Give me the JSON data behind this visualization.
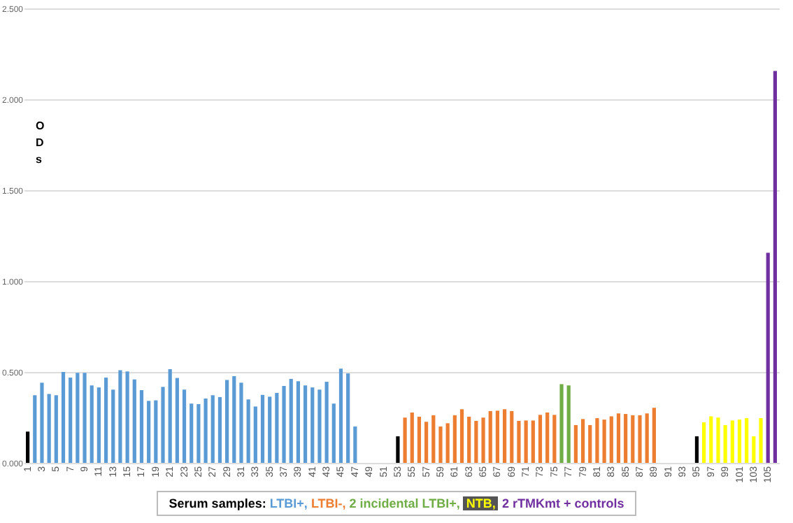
{
  "chart_data": {
    "type": "bar",
    "ylabel": "ODs",
    "legend_title": "Serum samples:",
    "categories": [
      "1",
      null,
      "3",
      null,
      "5",
      null,
      "7",
      null,
      "9",
      null,
      "11",
      null,
      "13",
      null,
      "15",
      null,
      "17",
      null,
      "19",
      null,
      "21",
      null,
      "23",
      null,
      "25",
      null,
      "27",
      null,
      "29",
      null,
      "31",
      null,
      "33",
      null,
      "35",
      null,
      "37",
      null,
      "39",
      null,
      "41",
      null,
      "43",
      null,
      "45",
      null,
      "47",
      null,
      "49",
      null,
      "51",
      null,
      "53",
      null,
      "55",
      null,
      "57",
      null,
      "59",
      null,
      "61",
      null,
      "63",
      null,
      "65",
      null,
      "67",
      null,
      "69",
      null,
      "71",
      null,
      "73",
      null,
      "75",
      null,
      "77",
      null,
      "79",
      null,
      "81",
      null,
      "83",
      null,
      "85",
      null,
      "87",
      null,
      "89",
      null,
      "91",
      null,
      "93",
      null,
      "95",
      null,
      "97",
      null,
      "99",
      null,
      "101",
      null,
      "103",
      null,
      "105",
      null
    ],
    "series": [
      {
        "color": "#000000",
        "values": [
          0.172,
          null,
          null,
          null,
          null,
          null,
          null,
          null,
          null,
          null,
          null,
          null,
          null,
          null,
          null,
          null,
          null,
          null,
          null,
          null,
          null,
          null,
          null,
          null,
          null,
          null,
          null,
          null,
          null,
          null,
          null,
          null,
          null,
          null,
          null,
          null,
          null,
          null,
          null,
          null,
          null,
          null,
          null,
          null,
          null,
          null,
          null,
          null,
          null,
          null,
          null,
          null,
          0.146,
          null,
          null,
          null,
          null,
          null,
          null,
          null,
          null,
          null,
          null,
          null,
          null,
          null,
          null,
          null,
          null,
          null,
          null,
          null,
          null,
          null,
          null,
          null,
          null,
          null,
          null,
          null,
          null,
          null,
          null,
          null,
          null,
          null,
          null,
          null,
          null,
          null,
          null,
          null,
          null,
          null,
          0.146,
          null,
          null,
          null,
          null,
          null,
          null,
          null,
          null,
          null,
          null,
          null
        ]
      },
      {
        "name": "LTBI+,",
        "color": "#5b9bd5",
        "values": [
          null,
          0.372,
          0.441,
          0.379,
          0.372,
          0.5,
          0.469,
          0.495,
          0.495,
          0.426,
          0.415,
          0.469,
          0.403,
          0.51,
          0.503,
          0.459,
          0.4,
          0.341,
          0.344,
          0.418,
          0.515,
          0.467,
          0.403,
          0.326,
          0.323,
          0.354,
          0.372,
          0.362,
          0.456,
          0.477,
          0.441,
          0.349,
          0.31,
          0.374,
          0.364,
          0.385,
          0.423,
          0.462,
          0.449,
          0.426,
          0.415,
          0.403,
          0.446,
          0.326,
          0.518,
          0.492,
          0.2,
          null,
          null,
          null,
          null,
          null,
          null,
          null,
          null,
          null,
          null,
          null,
          null,
          null,
          null,
          null,
          null,
          null,
          null,
          null,
          null,
          null,
          null,
          null,
          null,
          null,
          null,
          null,
          null,
          null,
          null,
          null,
          null,
          null,
          null,
          null,
          null,
          null,
          null,
          null,
          null,
          null,
          null,
          null,
          null,
          null,
          null,
          null,
          null,
          null,
          null,
          null,
          null,
          null,
          null,
          null,
          null,
          null,
          null,
          null
        ]
      },
      {
        "name": "LTBI-,",
        "color": "#ed7d31",
        "values": [
          null,
          null,
          null,
          null,
          null,
          null,
          null,
          null,
          null,
          null,
          null,
          null,
          null,
          null,
          null,
          null,
          null,
          null,
          null,
          null,
          null,
          null,
          null,
          null,
          null,
          null,
          null,
          null,
          null,
          null,
          null,
          null,
          null,
          null,
          null,
          null,
          null,
          null,
          null,
          null,
          null,
          null,
          null,
          null,
          null,
          null,
          null,
          null,
          null,
          null,
          null,
          null,
          null,
          0.249,
          0.277,
          0.254,
          0.226,
          0.262,
          0.2,
          0.218,
          0.262,
          0.295,
          0.254,
          0.231,
          0.249,
          0.285,
          0.287,
          0.295,
          0.285,
          0.231,
          0.233,
          0.233,
          0.264,
          0.277,
          0.264,
          null,
          null,
          0.208,
          0.241,
          0.208,
          0.246,
          0.238,
          0.256,
          0.272,
          0.269,
          0.262,
          0.262,
          0.272,
          0.303,
          null,
          null,
          null,
          null,
          null,
          null,
          null,
          null,
          null,
          null,
          null,
          null,
          null,
          null,
          null,
          null,
          null
        ]
      },
      {
        "name": "2 incidental LTBI+,",
        "color": "#70ad47",
        "values": [
          null,
          null,
          null,
          null,
          null,
          null,
          null,
          null,
          null,
          null,
          null,
          null,
          null,
          null,
          null,
          null,
          null,
          null,
          null,
          null,
          null,
          null,
          null,
          null,
          null,
          null,
          null,
          null,
          null,
          null,
          null,
          null,
          null,
          null,
          null,
          null,
          null,
          null,
          null,
          null,
          null,
          null,
          null,
          null,
          null,
          null,
          null,
          null,
          null,
          null,
          null,
          null,
          null,
          null,
          null,
          null,
          null,
          null,
          null,
          null,
          null,
          null,
          null,
          null,
          null,
          null,
          null,
          null,
          null,
          null,
          null,
          null,
          null,
          null,
          null,
          0.433,
          0.426,
          null,
          null,
          null,
          null,
          null,
          null,
          null,
          null,
          null,
          null,
          null,
          null,
          null,
          null,
          null,
          null,
          null,
          null,
          null,
          null,
          null,
          null,
          null,
          null,
          null,
          null,
          null,
          null,
          null
        ]
      },
      {
        "name": "NTB,",
        "color": "#ffff00",
        "values": [
          null,
          null,
          null,
          null,
          null,
          null,
          null,
          null,
          null,
          null,
          null,
          null,
          null,
          null,
          null,
          null,
          null,
          null,
          null,
          null,
          null,
          null,
          null,
          null,
          null,
          null,
          null,
          null,
          null,
          null,
          null,
          null,
          null,
          null,
          null,
          null,
          null,
          null,
          null,
          null,
          null,
          null,
          null,
          null,
          null,
          null,
          null,
          null,
          null,
          null,
          null,
          null,
          null,
          null,
          null,
          null,
          null,
          null,
          null,
          null,
          null,
          null,
          null,
          null,
          null,
          null,
          null,
          null,
          null,
          null,
          null,
          null,
          null,
          null,
          null,
          null,
          null,
          null,
          null,
          null,
          null,
          null,
          null,
          null,
          null,
          null,
          null,
          null,
          null,
          null,
          null,
          null,
          null,
          null,
          null,
          0.223,
          0.256,
          0.249,
          0.208,
          0.233,
          0.238,
          0.246,
          0.146,
          0.246,
          null,
          null
        ]
      },
      {
        "name": "2 rTMKmt + controls",
        "color": "#7030a0",
        "values": [
          null,
          null,
          null,
          null,
          null,
          null,
          null,
          null,
          null,
          null,
          null,
          null,
          null,
          null,
          null,
          null,
          null,
          null,
          null,
          null,
          null,
          null,
          null,
          null,
          null,
          null,
          null,
          null,
          null,
          null,
          null,
          null,
          null,
          null,
          null,
          null,
          null,
          null,
          null,
          null,
          null,
          null,
          null,
          null,
          null,
          null,
          null,
          null,
          null,
          null,
          null,
          null,
          null,
          null,
          null,
          null,
          null,
          null,
          null,
          null,
          null,
          null,
          null,
          null,
          null,
          null,
          null,
          null,
          null,
          null,
          null,
          null,
          null,
          null,
          null,
          null,
          null,
          null,
          null,
          null,
          null,
          null,
          null,
          null,
          null,
          null,
          null,
          null,
          null,
          null,
          null,
          null,
          null,
          null,
          null,
          null,
          null,
          null,
          null,
          null,
          null,
          null,
          null,
          null,
          1.156,
          2.156
        ]
      }
    ],
    "ylim": [
      0,
      2.5
    ],
    "yticks": [
      {
        "value": 0,
        "label": "0.000"
      },
      {
        "value": 0.5,
        "label": "0.500"
      },
      {
        "value": 1,
        "label": "1.000"
      },
      {
        "value": 1.5,
        "label": "1.500"
      },
      {
        "value": 2,
        "label": "2.000"
      },
      {
        "value": 2.5,
        "label": "2.500"
      }
    ],
    "grid": "y",
    "legend": "bottom"
  }
}
